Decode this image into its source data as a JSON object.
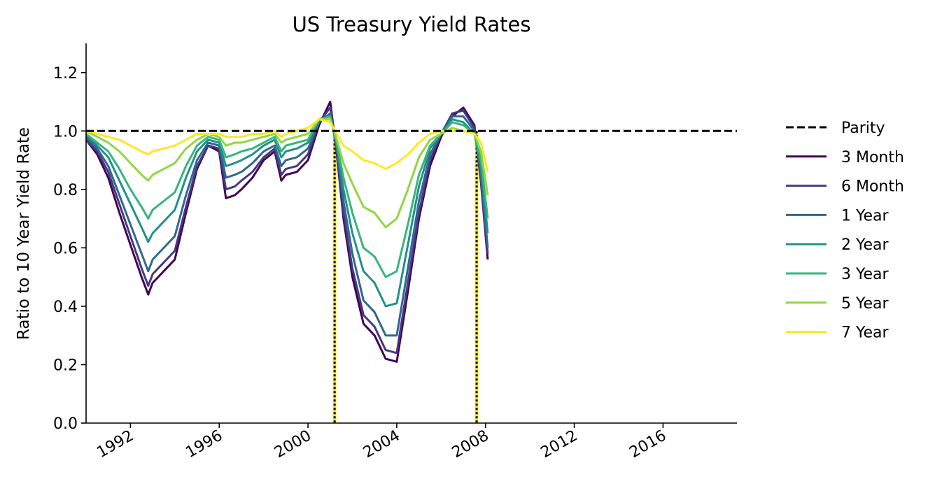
{
  "chart_data": {
    "type": "line",
    "title": "US Treasury Yield Rates",
    "xlabel": "",
    "ylabel": "Ratio to 10 Year Yield Rate",
    "xlim": [
      1990.0,
      2019.33
    ],
    "ylim": [
      0.0,
      1.3
    ],
    "x_ticks": [
      1992,
      1996,
      2000,
      2004,
      2008,
      2012,
      2016
    ],
    "x_tick_labels": [
      "1992",
      "1996",
      "2000",
      "2004",
      "2008",
      "2012",
      "2016"
    ],
    "y_ticks": [
      0.0,
      0.2,
      0.4,
      0.6,
      0.8,
      1.0,
      1.2
    ],
    "y_tick_labels": [
      "0.0",
      "0.2",
      "0.4",
      "0.6",
      "0.8",
      "1.0",
      "1.2"
    ],
    "grid": false,
    "legend_position": "right-outside",
    "reference_line": {
      "name": "Parity",
      "y": 1.0,
      "style": "dashed",
      "color": "#000000"
    },
    "vertical_markers": [
      {
        "x": 2001.2,
        "color": "#fde725",
        "style": "dotted-black"
      },
      {
        "x": 2007.6,
        "color": "#fde725",
        "style": "dotted-black"
      }
    ],
    "x": [
      1990.0,
      1990.5,
      1991.0,
      1991.5,
      1992.0,
      1992.5,
      1992.8,
      1993.0,
      1993.5,
      1994.0,
      1994.5,
      1995.0,
      1995.5,
      1996.0,
      1996.3,
      1996.7,
      1997.0,
      1997.5,
      1998.0,
      1998.5,
      1998.8,
      1999.0,
      1999.5,
      2000.0,
      2000.5,
      2001.0,
      2001.3,
      2001.6,
      2002.0,
      2002.5,
      2003.0,
      2003.5,
      2004.0,
      2004.5,
      2005.0,
      2005.5,
      2006.0,
      2006.5,
      2007.0,
      2007.5,
      2007.8,
      2008.1
    ],
    "series": [
      {
        "name": "3 Month",
        "color": "#440154",
        "values": [
          0.97,
          0.92,
          0.84,
          0.72,
          0.61,
          0.5,
          0.44,
          0.48,
          0.52,
          0.56,
          0.72,
          0.87,
          0.95,
          0.93,
          0.77,
          0.78,
          0.8,
          0.84,
          0.9,
          0.93,
          0.83,
          0.85,
          0.86,
          0.9,
          1.02,
          1.1,
          0.92,
          0.7,
          0.5,
          0.34,
          0.3,
          0.22,
          0.21,
          0.45,
          0.7,
          0.88,
          0.98,
          1.05,
          1.08,
          1.02,
          0.82,
          0.56
        ]
      },
      {
        "name": "6 Month",
        "color": "#443983",
        "values": [
          0.97,
          0.93,
          0.86,
          0.75,
          0.64,
          0.53,
          0.47,
          0.51,
          0.55,
          0.59,
          0.74,
          0.88,
          0.95,
          0.94,
          0.8,
          0.81,
          0.83,
          0.86,
          0.91,
          0.94,
          0.85,
          0.87,
          0.88,
          0.92,
          1.03,
          1.08,
          0.93,
          0.72,
          0.53,
          0.37,
          0.33,
          0.25,
          0.24,
          0.48,
          0.72,
          0.9,
          0.99,
          1.06,
          1.07,
          1.01,
          0.83,
          0.58
        ]
      },
      {
        "name": "1 Year",
        "color": "#31688e",
        "values": [
          0.98,
          0.94,
          0.88,
          0.78,
          0.68,
          0.58,
          0.52,
          0.56,
          0.6,
          0.64,
          0.78,
          0.9,
          0.96,
          0.95,
          0.84,
          0.85,
          0.86,
          0.89,
          0.93,
          0.95,
          0.88,
          0.9,
          0.91,
          0.94,
          1.03,
          1.06,
          0.94,
          0.76,
          0.58,
          0.42,
          0.38,
          0.3,
          0.3,
          0.53,
          0.76,
          0.92,
          0.99,
          1.05,
          1.05,
          1.0,
          0.85,
          0.6
        ]
      },
      {
        "name": "2 Year",
        "color": "#21918c",
        "values": [
          0.99,
          0.95,
          0.91,
          0.83,
          0.75,
          0.67,
          0.62,
          0.65,
          0.69,
          0.73,
          0.84,
          0.93,
          0.97,
          0.96,
          0.88,
          0.89,
          0.9,
          0.92,
          0.95,
          0.97,
          0.91,
          0.93,
          0.94,
          0.96,
          1.04,
          1.05,
          0.95,
          0.8,
          0.65,
          0.52,
          0.48,
          0.4,
          0.41,
          0.61,
          0.81,
          0.94,
          0.99,
          1.04,
          1.03,
          0.99,
          0.88,
          0.65
        ]
      },
      {
        "name": "3 Year",
        "color": "#35b779",
        "values": [
          0.99,
          0.96,
          0.93,
          0.87,
          0.8,
          0.74,
          0.7,
          0.73,
          0.76,
          0.79,
          0.88,
          0.95,
          0.98,
          0.97,
          0.91,
          0.92,
          0.93,
          0.94,
          0.96,
          0.98,
          0.93,
          0.95,
          0.96,
          0.97,
          1.04,
          1.05,
          0.96,
          0.84,
          0.72,
          0.6,
          0.57,
          0.5,
          0.52,
          0.68,
          0.85,
          0.95,
          0.99,
          1.03,
          1.02,
          0.99,
          0.9,
          0.7
        ]
      },
      {
        "name": "5 Year",
        "color": "#90d743",
        "values": [
          1.0,
          0.98,
          0.96,
          0.93,
          0.89,
          0.85,
          0.83,
          0.85,
          0.87,
          0.89,
          0.94,
          0.97,
          0.99,
          0.98,
          0.95,
          0.96,
          0.96,
          0.97,
          0.98,
          0.99,
          0.96,
          0.97,
          0.98,
          0.99,
          1.04,
          1.04,
          0.97,
          0.89,
          0.82,
          0.74,
          0.72,
          0.67,
          0.7,
          0.8,
          0.91,
          0.97,
          0.99,
          1.01,
          1.0,
          0.99,
          0.93,
          0.78
        ]
      },
      {
        "name": "7 Year",
        "color": "#fde725",
        "values": [
          1.0,
          0.99,
          0.98,
          0.97,
          0.95,
          0.93,
          0.92,
          0.93,
          0.94,
          0.95,
          0.97,
          0.99,
          0.99,
          0.99,
          0.98,
          0.98,
          0.98,
          0.99,
          0.99,
          1.0,
          0.98,
          0.99,
          1.0,
          1.01,
          1.04,
          1.03,
          0.99,
          0.95,
          0.93,
          0.9,
          0.89,
          0.87,
          0.89,
          0.92,
          0.96,
          0.99,
          1.0,
          1.0,
          1.0,
          0.99,
          0.96,
          0.86
        ]
      }
    ]
  }
}
